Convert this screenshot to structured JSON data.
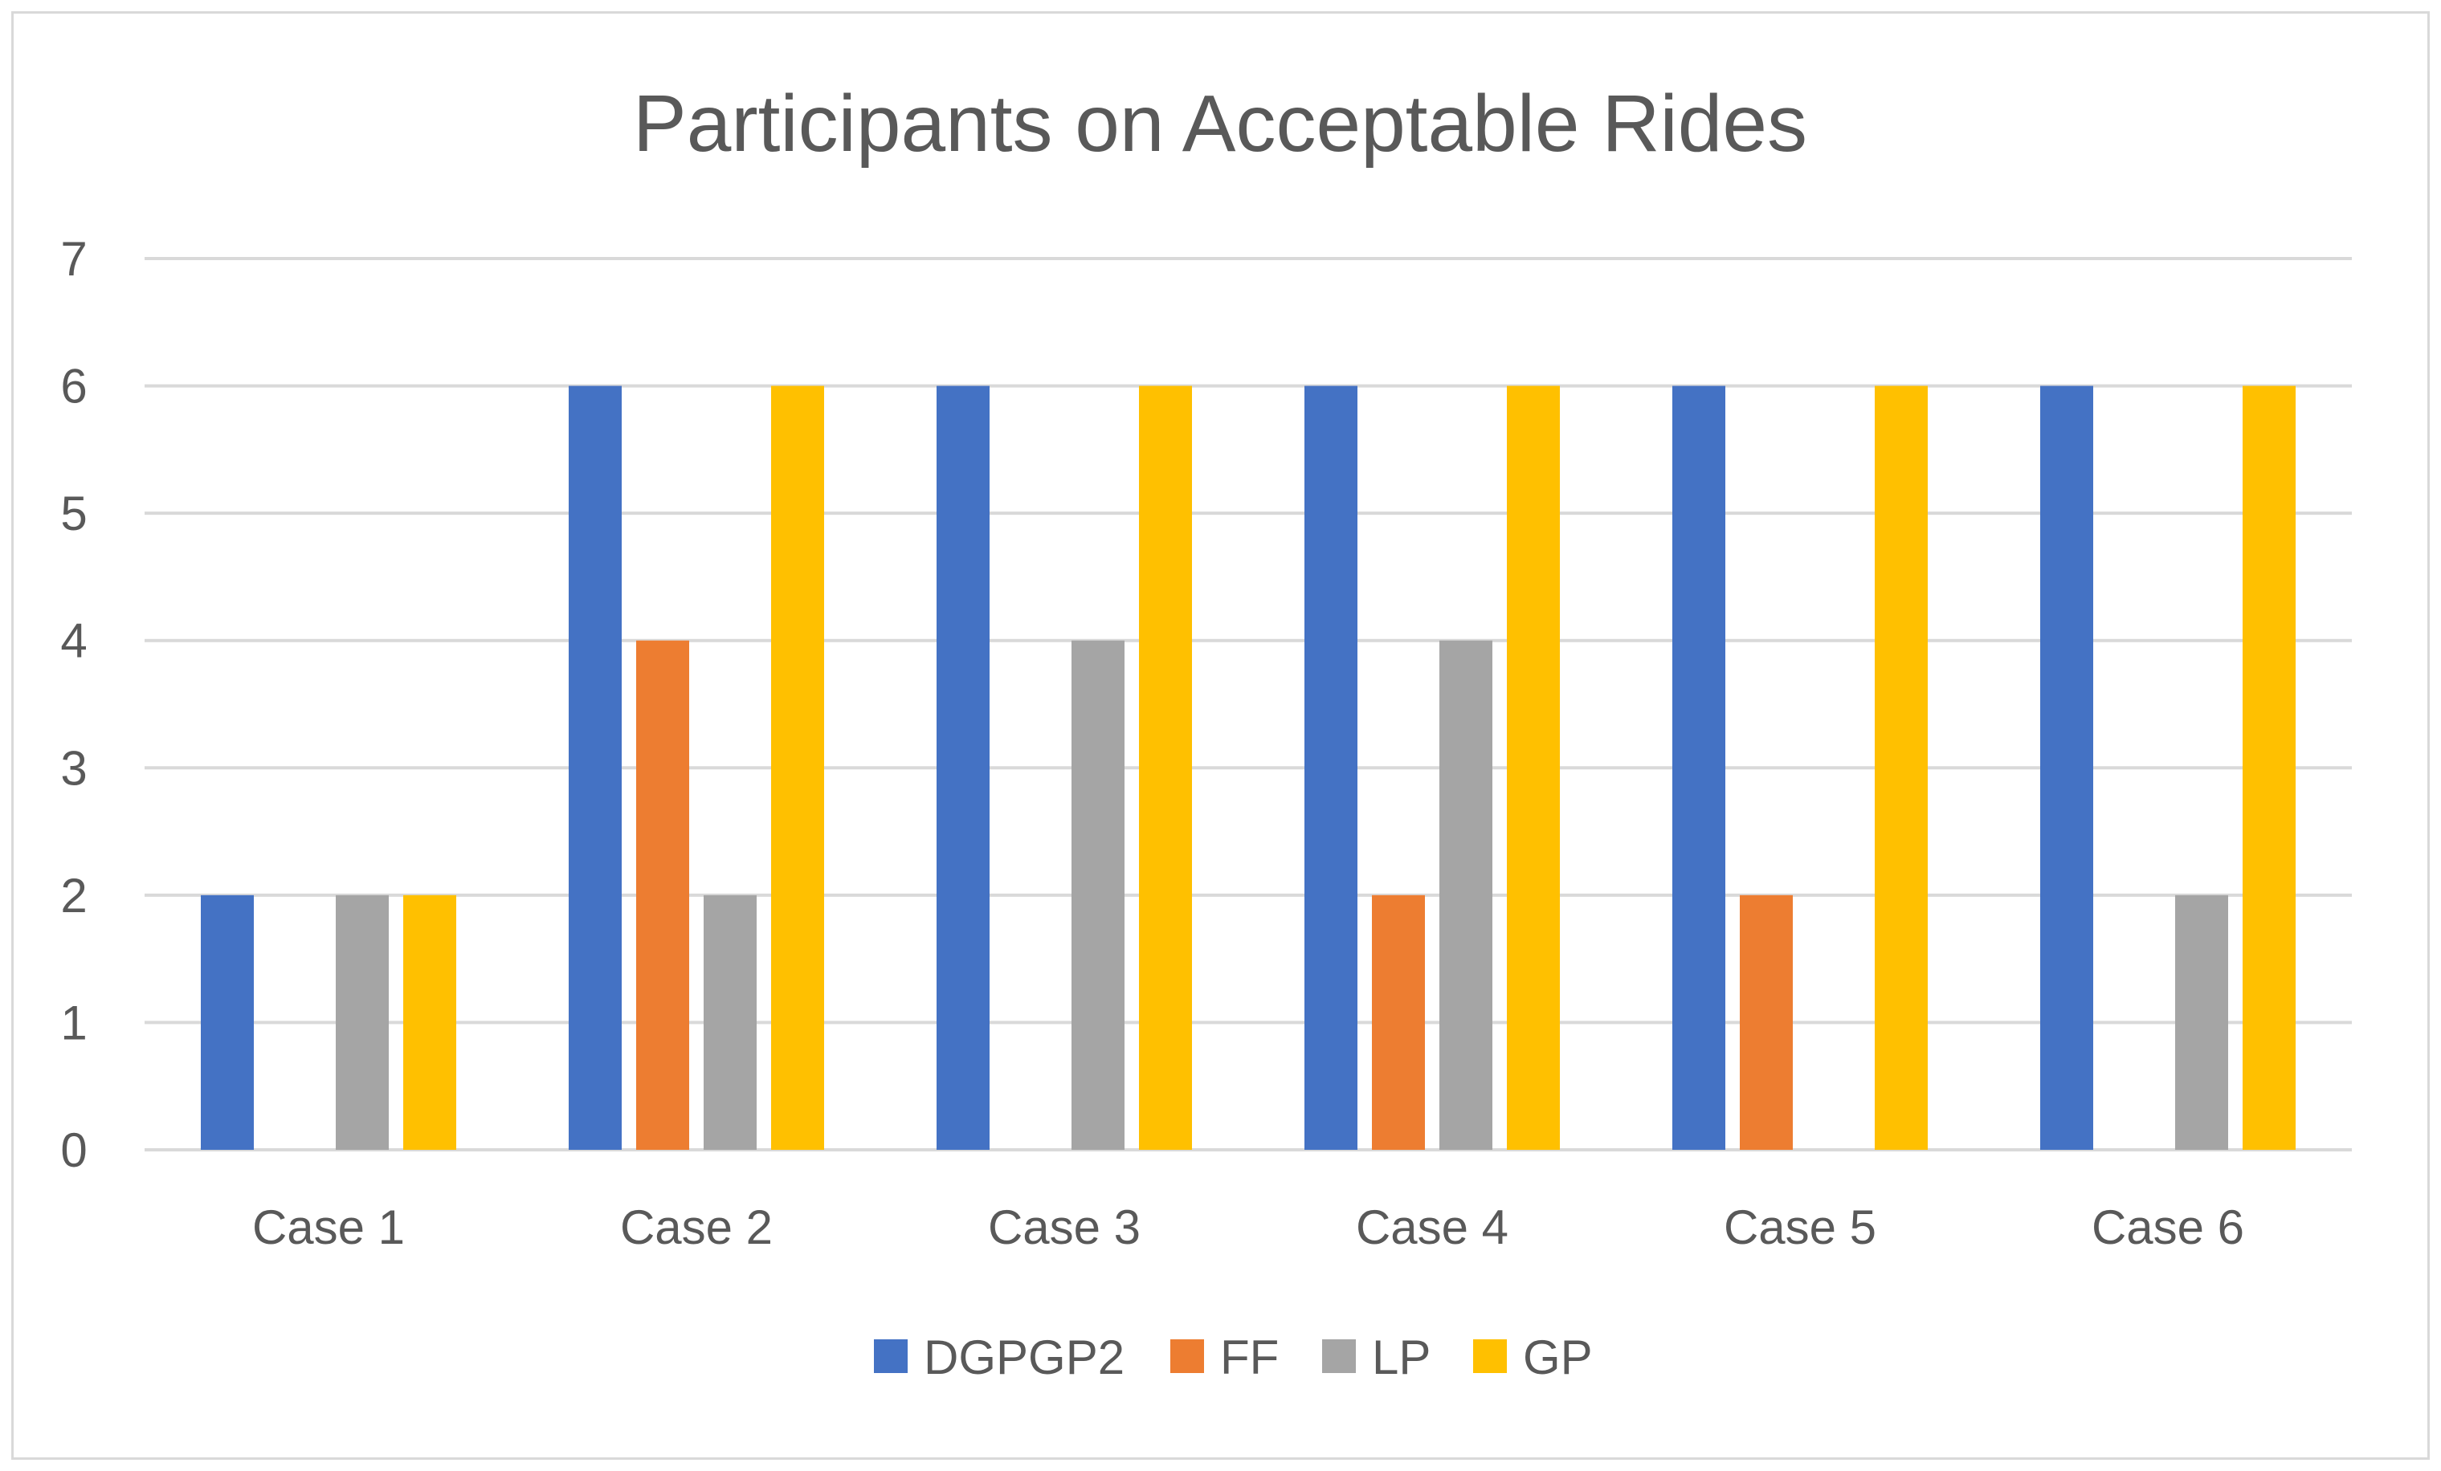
{
  "chart_data": {
    "type": "bar",
    "title": "Participants on Acceptable Rides",
    "xlabel": "",
    "ylabel": "",
    "categories": [
      "Case 1",
      "Case 2",
      "Case 3",
      "Case 4",
      "Case 5",
      "Case 6"
    ],
    "series": [
      {
        "name": "DGPGP2",
        "color": "#4472c4",
        "values": [
          2,
          6,
          6,
          6,
          6,
          6
        ]
      },
      {
        "name": "FF",
        "color": "#ed7d31",
        "values": [
          0,
          4,
          0,
          2,
          2,
          0
        ]
      },
      {
        "name": "LP",
        "color": "#a5a5a5",
        "values": [
          2,
          2,
          4,
          4,
          0,
          2
        ]
      },
      {
        "name": "GP",
        "color": "#ffc000",
        "values": [
          2,
          6,
          6,
          6,
          6,
          6
        ]
      }
    ],
    "ylim": [
      0,
      7
    ],
    "yticks": [
      0,
      1,
      2,
      3,
      4,
      5,
      6,
      7
    ],
    "grid": true,
    "legend_position": "bottom"
  }
}
